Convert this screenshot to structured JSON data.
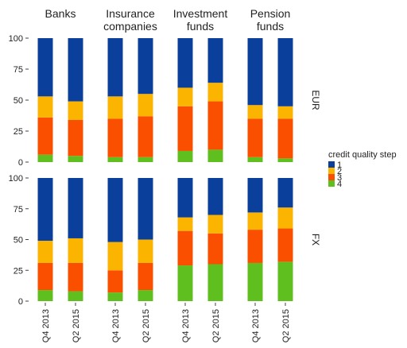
{
  "chart_data": {
    "type": "faceted_stacked_bar",
    "columns": [
      [
        "Banks"
      ],
      [
        "Insurance",
        "companies"
      ],
      [
        "Investment",
        "funds"
      ],
      [
        "Pension",
        "funds"
      ]
    ],
    "rows": [
      "EUR",
      "FX"
    ],
    "categories": [
      "Q4 2013",
      "Q2 2015"
    ],
    "legend_title": "credit quality step",
    "ylim": [
      0,
      100
    ],
    "yticks": [
      0,
      25,
      50,
      75,
      100
    ],
    "grid": false,
    "series": [
      {
        "name": "1",
        "color": "#0b3f9c",
        "values": [
          [
            [
              47,
              51
            ],
            [
              47,
              45
            ],
            [
              40,
              36
            ],
            [
              54,
              55
            ]
          ],
          [
            [
              51,
              49
            ],
            [
              52,
              50
            ],
            [
              32,
              30
            ],
            [
              28,
              24
            ]
          ]
        ]
      },
      {
        "name": "2",
        "color": "#fbb400",
        "values": [
          [
            [
              17,
              15
            ],
            [
              18,
              18
            ],
            [
              15,
              15
            ],
            [
              11,
              10
            ]
          ],
          [
            [
              18,
              20
            ],
            [
              23,
              19
            ],
            [
              11,
              15
            ],
            [
              14,
              17
            ]
          ]
        ]
      },
      {
        "name": "3",
        "color": "#fb4f00",
        "values": [
          [
            [
              30,
              29
            ],
            [
              31,
              33
            ],
            [
              36,
              39
            ],
            [
              31,
              32
            ]
          ],
          [
            [
              22,
              23
            ],
            [
              18,
              22
            ],
            [
              28,
              25
            ],
            [
              27,
              27
            ]
          ]
        ]
      },
      {
        "name": "4",
        "color": "#5fbf1f",
        "values": [
          [
            [
              6,
              5
            ],
            [
              4,
              4
            ],
            [
              9,
              10
            ],
            [
              4,
              3
            ]
          ],
          [
            [
              9,
              8
            ],
            [
              7,
              9
            ],
            [
              29,
              30
            ],
            [
              31,
              32
            ]
          ]
        ]
      }
    ]
  }
}
